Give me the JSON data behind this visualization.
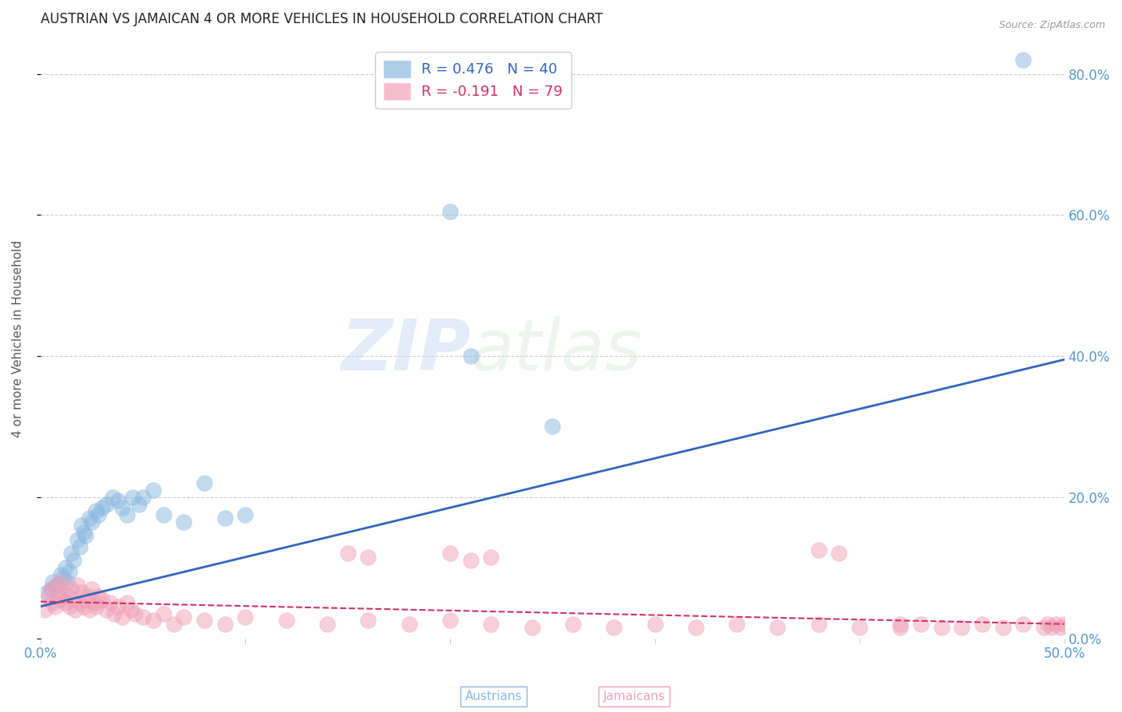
{
  "title": "AUSTRIAN VS JAMAICAN 4 OR MORE VEHICLES IN HOUSEHOLD CORRELATION CHART",
  "source": "Source: ZipAtlas.com",
  "ylabel": "4 or more Vehicles in Household",
  "xlim": [
    0.0,
    0.5
  ],
  "ylim": [
    0.0,
    0.85
  ],
  "blue_scatter_x": [
    0.003,
    0.005,
    0.006,
    0.008,
    0.009,
    0.01,
    0.011,
    0.012,
    0.013,
    0.014,
    0.015,
    0.016,
    0.018,
    0.019,
    0.02,
    0.021,
    0.022,
    0.024,
    0.025,
    0.027,
    0.028,
    0.03,
    0.032,
    0.035,
    0.038,
    0.04,
    0.042,
    0.045,
    0.048,
    0.05,
    0.055,
    0.06,
    0.07,
    0.08,
    0.09,
    0.1,
    0.2,
    0.21,
    0.25,
    0.48
  ],
  "blue_scatter_y": [
    0.065,
    0.07,
    0.08,
    0.075,
    0.06,
    0.09,
    0.085,
    0.1,
    0.08,
    0.095,
    0.12,
    0.11,
    0.14,
    0.13,
    0.16,
    0.15,
    0.145,
    0.17,
    0.165,
    0.18,
    0.175,
    0.185,
    0.19,
    0.2,
    0.195,
    0.185,
    0.175,
    0.2,
    0.19,
    0.2,
    0.21,
    0.175,
    0.165,
    0.22,
    0.17,
    0.175,
    0.605,
    0.4,
    0.3,
    0.82
  ],
  "pink_scatter_x": [
    0.002,
    0.004,
    0.005,
    0.006,
    0.007,
    0.008,
    0.009,
    0.01,
    0.011,
    0.012,
    0.013,
    0.014,
    0.015,
    0.016,
    0.017,
    0.018,
    0.019,
    0.02,
    0.021,
    0.022,
    0.023,
    0.024,
    0.025,
    0.026,
    0.027,
    0.028,
    0.03,
    0.032,
    0.034,
    0.036,
    0.038,
    0.04,
    0.042,
    0.044,
    0.046,
    0.05,
    0.055,
    0.06,
    0.065,
    0.07,
    0.08,
    0.09,
    0.1,
    0.12,
    0.14,
    0.16,
    0.18,
    0.2,
    0.22,
    0.24,
    0.26,
    0.28,
    0.3,
    0.32,
    0.34,
    0.36,
    0.38,
    0.4,
    0.42,
    0.44,
    0.2,
    0.21,
    0.22,
    0.15,
    0.16,
    0.38,
    0.39,
    0.42,
    0.43,
    0.45,
    0.46,
    0.47,
    0.48,
    0.49,
    0.492,
    0.494,
    0.496,
    0.498,
    0.5
  ],
  "pink_scatter_y": [
    0.04,
    0.06,
    0.07,
    0.05,
    0.045,
    0.075,
    0.055,
    0.08,
    0.065,
    0.05,
    0.06,
    0.045,
    0.07,
    0.055,
    0.04,
    0.075,
    0.05,
    0.065,
    0.045,
    0.055,
    0.06,
    0.04,
    0.07,
    0.05,
    0.045,
    0.06,
    0.055,
    0.04,
    0.05,
    0.035,
    0.045,
    0.03,
    0.05,
    0.04,
    0.035,
    0.03,
    0.025,
    0.035,
    0.02,
    0.03,
    0.025,
    0.02,
    0.03,
    0.025,
    0.02,
    0.025,
    0.02,
    0.025,
    0.02,
    0.015,
    0.02,
    0.015,
    0.02,
    0.015,
    0.02,
    0.015,
    0.02,
    0.015,
    0.02,
    0.015,
    0.12,
    0.11,
    0.115,
    0.12,
    0.115,
    0.125,
    0.12,
    0.015,
    0.02,
    0.015,
    0.02,
    0.015,
    0.02,
    0.015,
    0.02,
    0.015,
    0.02,
    0.015,
    0.02
  ],
  "blue_color": "#8ab8e0",
  "pink_color": "#f0a0b8",
  "blue_line_color": "#3366bb",
  "pink_line_color": "#cc3366",
  "blue_R": "0.476",
  "blue_N": "40",
  "pink_R": "-0.191",
  "pink_N": "79",
  "watermark_zip": "ZIP",
  "watermark_atlas": "atlas",
  "title_fontsize": 12,
  "tick_color": "#5599cc",
  "label_color": "#555555"
}
